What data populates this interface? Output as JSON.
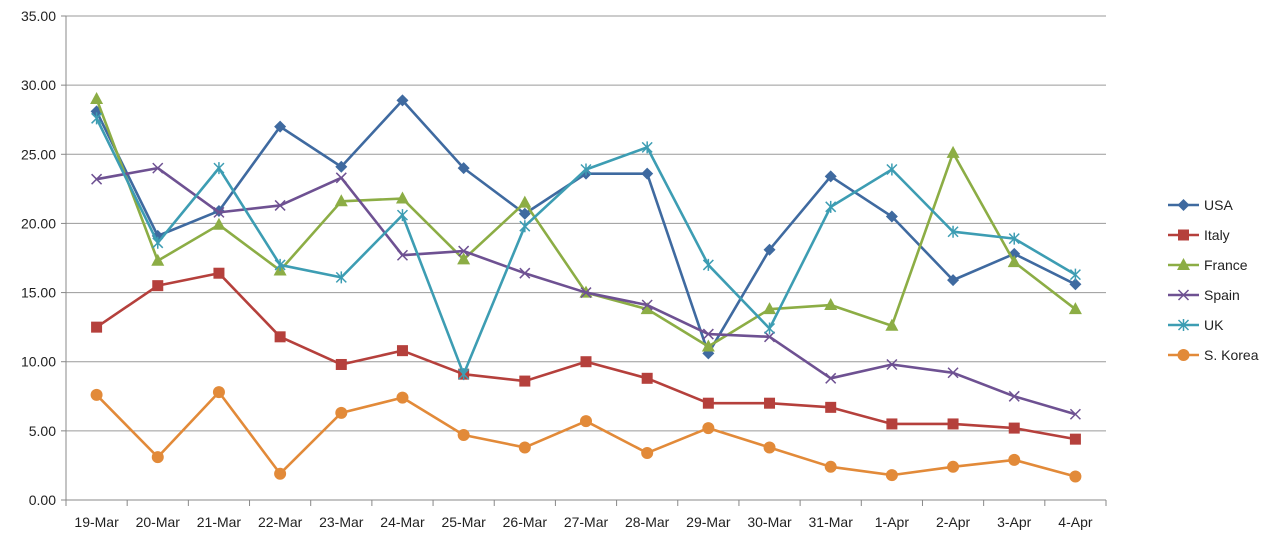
{
  "chart_data": {
    "type": "line",
    "title": "",
    "xlabel": "",
    "ylabel": "",
    "ylim": [
      0,
      35
    ],
    "yticks": [
      "0.00",
      "5.00",
      "10.00",
      "15.00",
      "20.00",
      "25.00",
      "30.00",
      "35.00"
    ],
    "grid": true,
    "legend_position": "right",
    "categories": [
      "19-Mar",
      "20-Mar",
      "21-Mar",
      "22-Mar",
      "23-Mar",
      "24-Mar",
      "25-Mar",
      "26-Mar",
      "27-Mar",
      "28-Mar",
      "29-Mar",
      "30-Mar",
      "31-Mar",
      "1-Apr",
      "2-Apr",
      "3-Apr",
      "4-Apr"
    ],
    "series": [
      {
        "name": "USA",
        "color": "#3F6AA0",
        "marker": "diamond",
        "values": [
          28.1,
          19.1,
          20.9,
          27.0,
          24.1,
          28.9,
          24.0,
          20.7,
          23.6,
          23.6,
          10.6,
          18.1,
          23.4,
          20.5,
          15.9,
          17.8,
          15.6
        ]
      },
      {
        "name": "Italy",
        "color": "#B5403C",
        "marker": "square",
        "values": [
          12.5,
          15.5,
          16.4,
          11.8,
          9.8,
          10.8,
          9.1,
          8.6,
          10.0,
          8.8,
          7.0,
          7.0,
          6.7,
          5.5,
          5.5,
          5.2,
          4.4
        ]
      },
      {
        "name": "France",
        "color": "#8CAD45",
        "marker": "triangle",
        "values": [
          29.0,
          17.3,
          19.9,
          16.6,
          21.6,
          21.8,
          17.4,
          21.5,
          15.0,
          13.8,
          11.1,
          13.8,
          14.1,
          12.6,
          25.1,
          17.2,
          13.8
        ]
      },
      {
        "name": "Spain",
        "color": "#6E5192",
        "marker": "x",
        "values": [
          23.2,
          24.0,
          20.8,
          21.3,
          23.3,
          17.7,
          18.0,
          16.4,
          15.0,
          14.1,
          12.0,
          11.8,
          8.8,
          9.8,
          9.2,
          7.5,
          6.2
        ]
      },
      {
        "name": "UK",
        "color": "#3D9DB3",
        "marker": "star",
        "values": [
          27.6,
          18.6,
          24.0,
          17.0,
          16.1,
          20.6,
          9.1,
          19.8,
          23.9,
          25.5,
          17.0,
          12.4,
          21.2,
          23.9,
          19.4,
          18.9,
          16.3
        ]
      },
      {
        "name": "S. Korea",
        "color": "#E28A39",
        "marker": "circle",
        "values": [
          7.6,
          3.1,
          7.8,
          1.9,
          6.3,
          7.4,
          4.7,
          3.8,
          5.7,
          3.4,
          5.2,
          3.8,
          2.4,
          1.8,
          2.4,
          2.9,
          1.7
        ]
      }
    ]
  }
}
